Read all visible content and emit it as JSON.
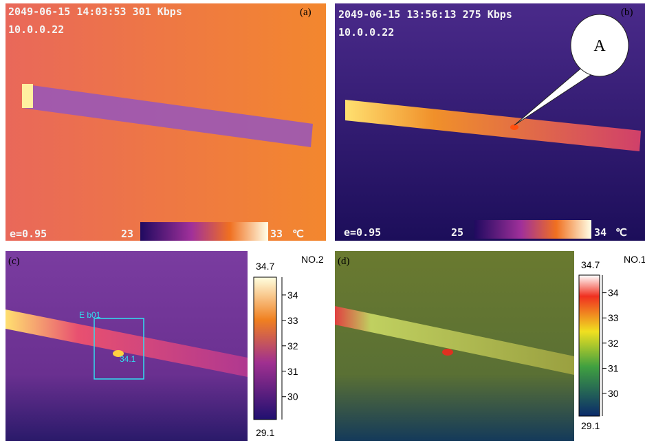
{
  "panels": [
    {
      "label": "(a)",
      "timestamp": "2049-06-15 14:03:53 301 Kbps",
      "ip": "10.0.0.22",
      "emissivity": "e=0.95",
      "scale_min": 23,
      "scale_max": 33,
      "unit": "℃"
    },
    {
      "label": "(b)",
      "timestamp": "2049-06-15 13:56:13 275 Kbps",
      "ip": "10.0.0.22",
      "emissivity": "e=0.95",
      "scale_min": 25,
      "scale_max": 34,
      "unit": "℃",
      "callout": "A"
    },
    {
      "label": "(c)",
      "tag": "NO.2",
      "scale_max": 34.7,
      "scale_min": 29.1,
      "ticks": [
        30,
        31,
        32,
        33,
        34
      ],
      "box_label": "E b01",
      "spot_value": "34.1"
    },
    {
      "label": "(d)",
      "tag": "NO.1",
      "scale_max": 34.7,
      "scale_min": 29.1,
      "ticks": [
        30,
        31,
        32,
        33,
        34
      ]
    }
  ]
}
